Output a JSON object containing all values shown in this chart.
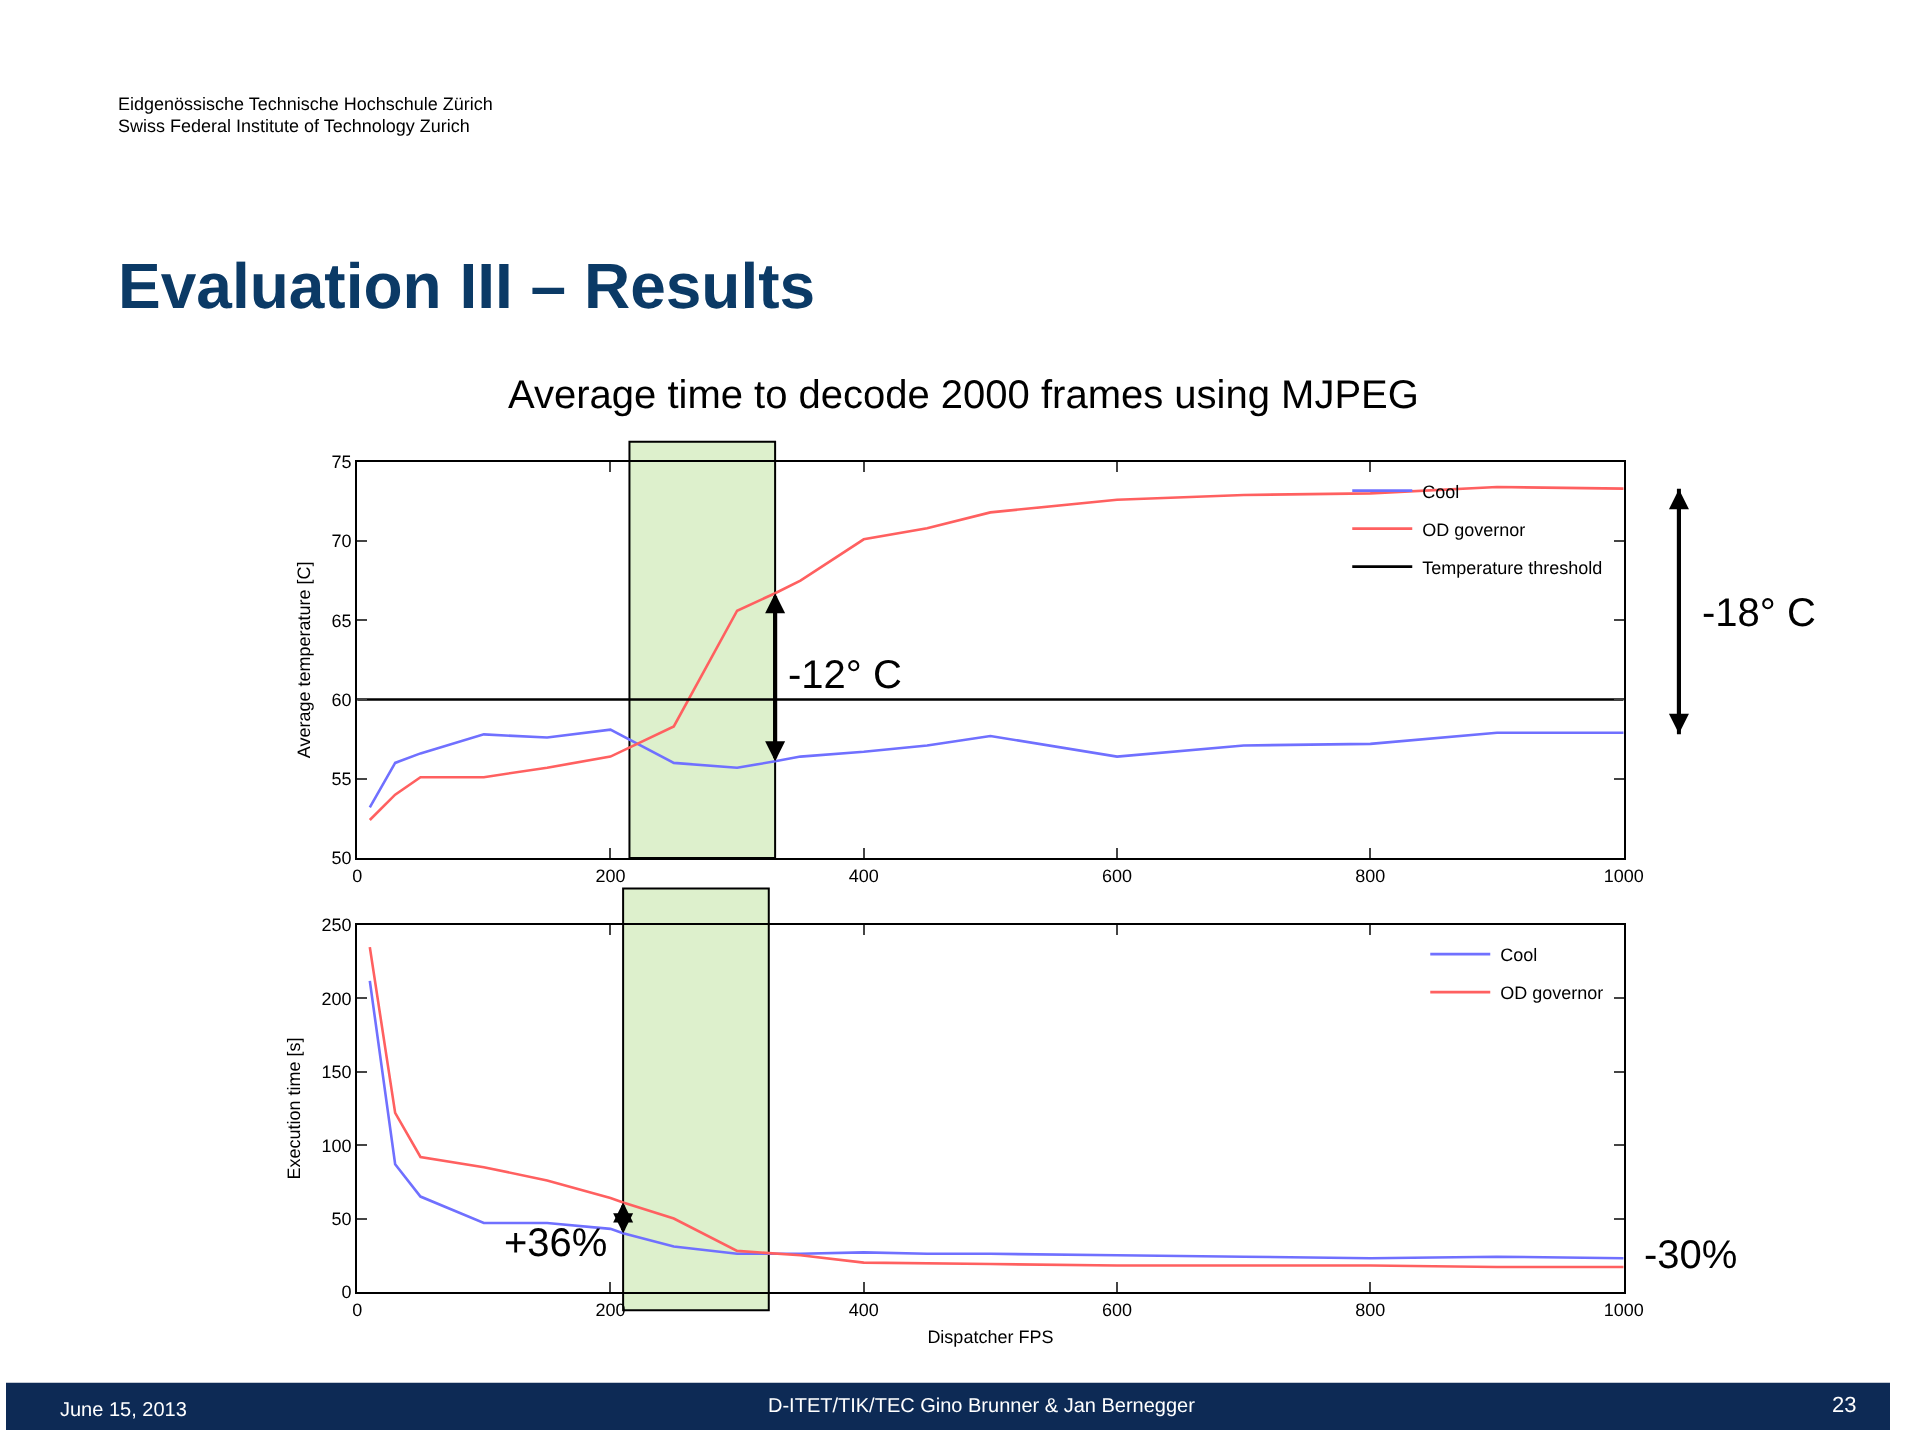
{
  "chart_data": [
    {
      "type": "line",
      "title": "Evaluation III – Results",
      "subtitle": "Average time to decode 2000 frames using MJPEG",
      "ylabel": "Average temperature [C]",
      "series": [
        {
          "name": "Cool",
          "color": "#7070ff",
          "x": [
            10,
            30,
            50,
            100,
            150,
            200,
            250,
            300,
            330,
            350,
            400,
            450,
            500,
            600,
            700,
            800,
            900,
            1000
          ],
          "values": [
            53.2,
            56,
            56.6,
            57.8,
            57.6,
            58.1,
            56,
            55.7,
            56.1,
            56.4,
            56.7,
            57.1,
            57.7,
            56.4,
            57.1,
            57.2,
            57.9,
            57.9
          ]
        },
        {
          "name": "OD governor",
          "color": "#ff6060",
          "x": [
            10,
            30,
            50,
            100,
            150,
            200,
            250,
            300,
            330,
            350,
            400,
            450,
            500,
            600,
            700,
            800,
            900,
            1000
          ],
          "values": [
            52.4,
            54,
            55.1,
            55.1,
            55.7,
            56.4,
            58.3,
            65.6,
            66.7,
            67.5,
            70.1,
            70.8,
            71.8,
            72.6,
            72.9,
            73,
            73.4,
            73.3
          ]
        },
        {
          "name": "Temperature threshold",
          "color": "#000000",
          "x": [
            0,
            1000
          ],
          "values": [
            60,
            60
          ]
        }
      ],
      "xlim": [
        0,
        1000
      ],
      "xticks": [
        0,
        200,
        400,
        600,
        800,
        1000
      ],
      "ylim": [
        50,
        75
      ],
      "yticks": [
        50,
        55,
        60,
        65,
        70,
        75
      ],
      "bands": [
        {
          "axis": "x",
          "from": 215,
          "to": 330,
          "color": "#ddf0cc"
        }
      ],
      "annotations": [
        "Eidgenössische Technische Hochschule Zürich",
        "Swiss Federal Institute of Technology Zurich",
        "June 15, 2013",
        "D-ITET/TIK/TEC Gino Brunner & Jan Bernegger",
        "23",
        {
          "text": "-12° C",
          "x": 330,
          "y": 61.5
        },
        "-18° C"
      ],
      "grid": false,
      "legend": "top right",
      "line_style": "solid",
      "marker": "none"
    },
    {
      "type": "line",
      "xlabel": "Dispatcher FPS",
      "ylabel": "Execution time [s]",
      "series": [
        {
          "name": "Cool",
          "color": "#7070ff",
          "x": [
            10,
            30,
            50,
            100,
            150,
            200,
            210,
            250,
            300,
            350,
            400,
            450,
            500,
            600,
            700,
            800,
            900,
            1000
          ],
          "values": [
            212,
            87,
            65,
            47,
            47,
            43,
            40,
            31,
            26,
            26,
            27,
            26,
            26,
            25,
            24,
            23,
            24,
            23
          ]
        },
        {
          "name": "OD governor",
          "color": "#ff6060",
          "x": [
            10,
            30,
            50,
            100,
            150,
            200,
            210,
            250,
            300,
            350,
            400,
            500,
            600,
            700,
            800,
            900,
            1000
          ],
          "values": [
            235,
            122,
            92,
            85,
            76,
            64,
            61,
            50,
            28,
            25,
            20,
            19,
            18,
            18,
            18,
            17,
            17
          ]
        }
      ],
      "xlim": [
        0,
        1000
      ],
      "xticks": [
        0,
        200,
        400,
        600,
        800,
        1000
      ],
      "ylim": [
        0,
        250
      ],
      "yticks": [
        0,
        50,
        100,
        150,
        200,
        250
      ],
      "bands": [
        {
          "axis": "x",
          "from": 210,
          "to": 325,
          "color": "#ddf0cc"
        }
      ],
      "annotations": [
        {
          "text": "+36%",
          "x": 210,
          "y": 50
        },
        "-30%"
      ],
      "grid": false,
      "legend": "top right",
      "line_style": "solid",
      "marker": "none"
    }
  ]
}
